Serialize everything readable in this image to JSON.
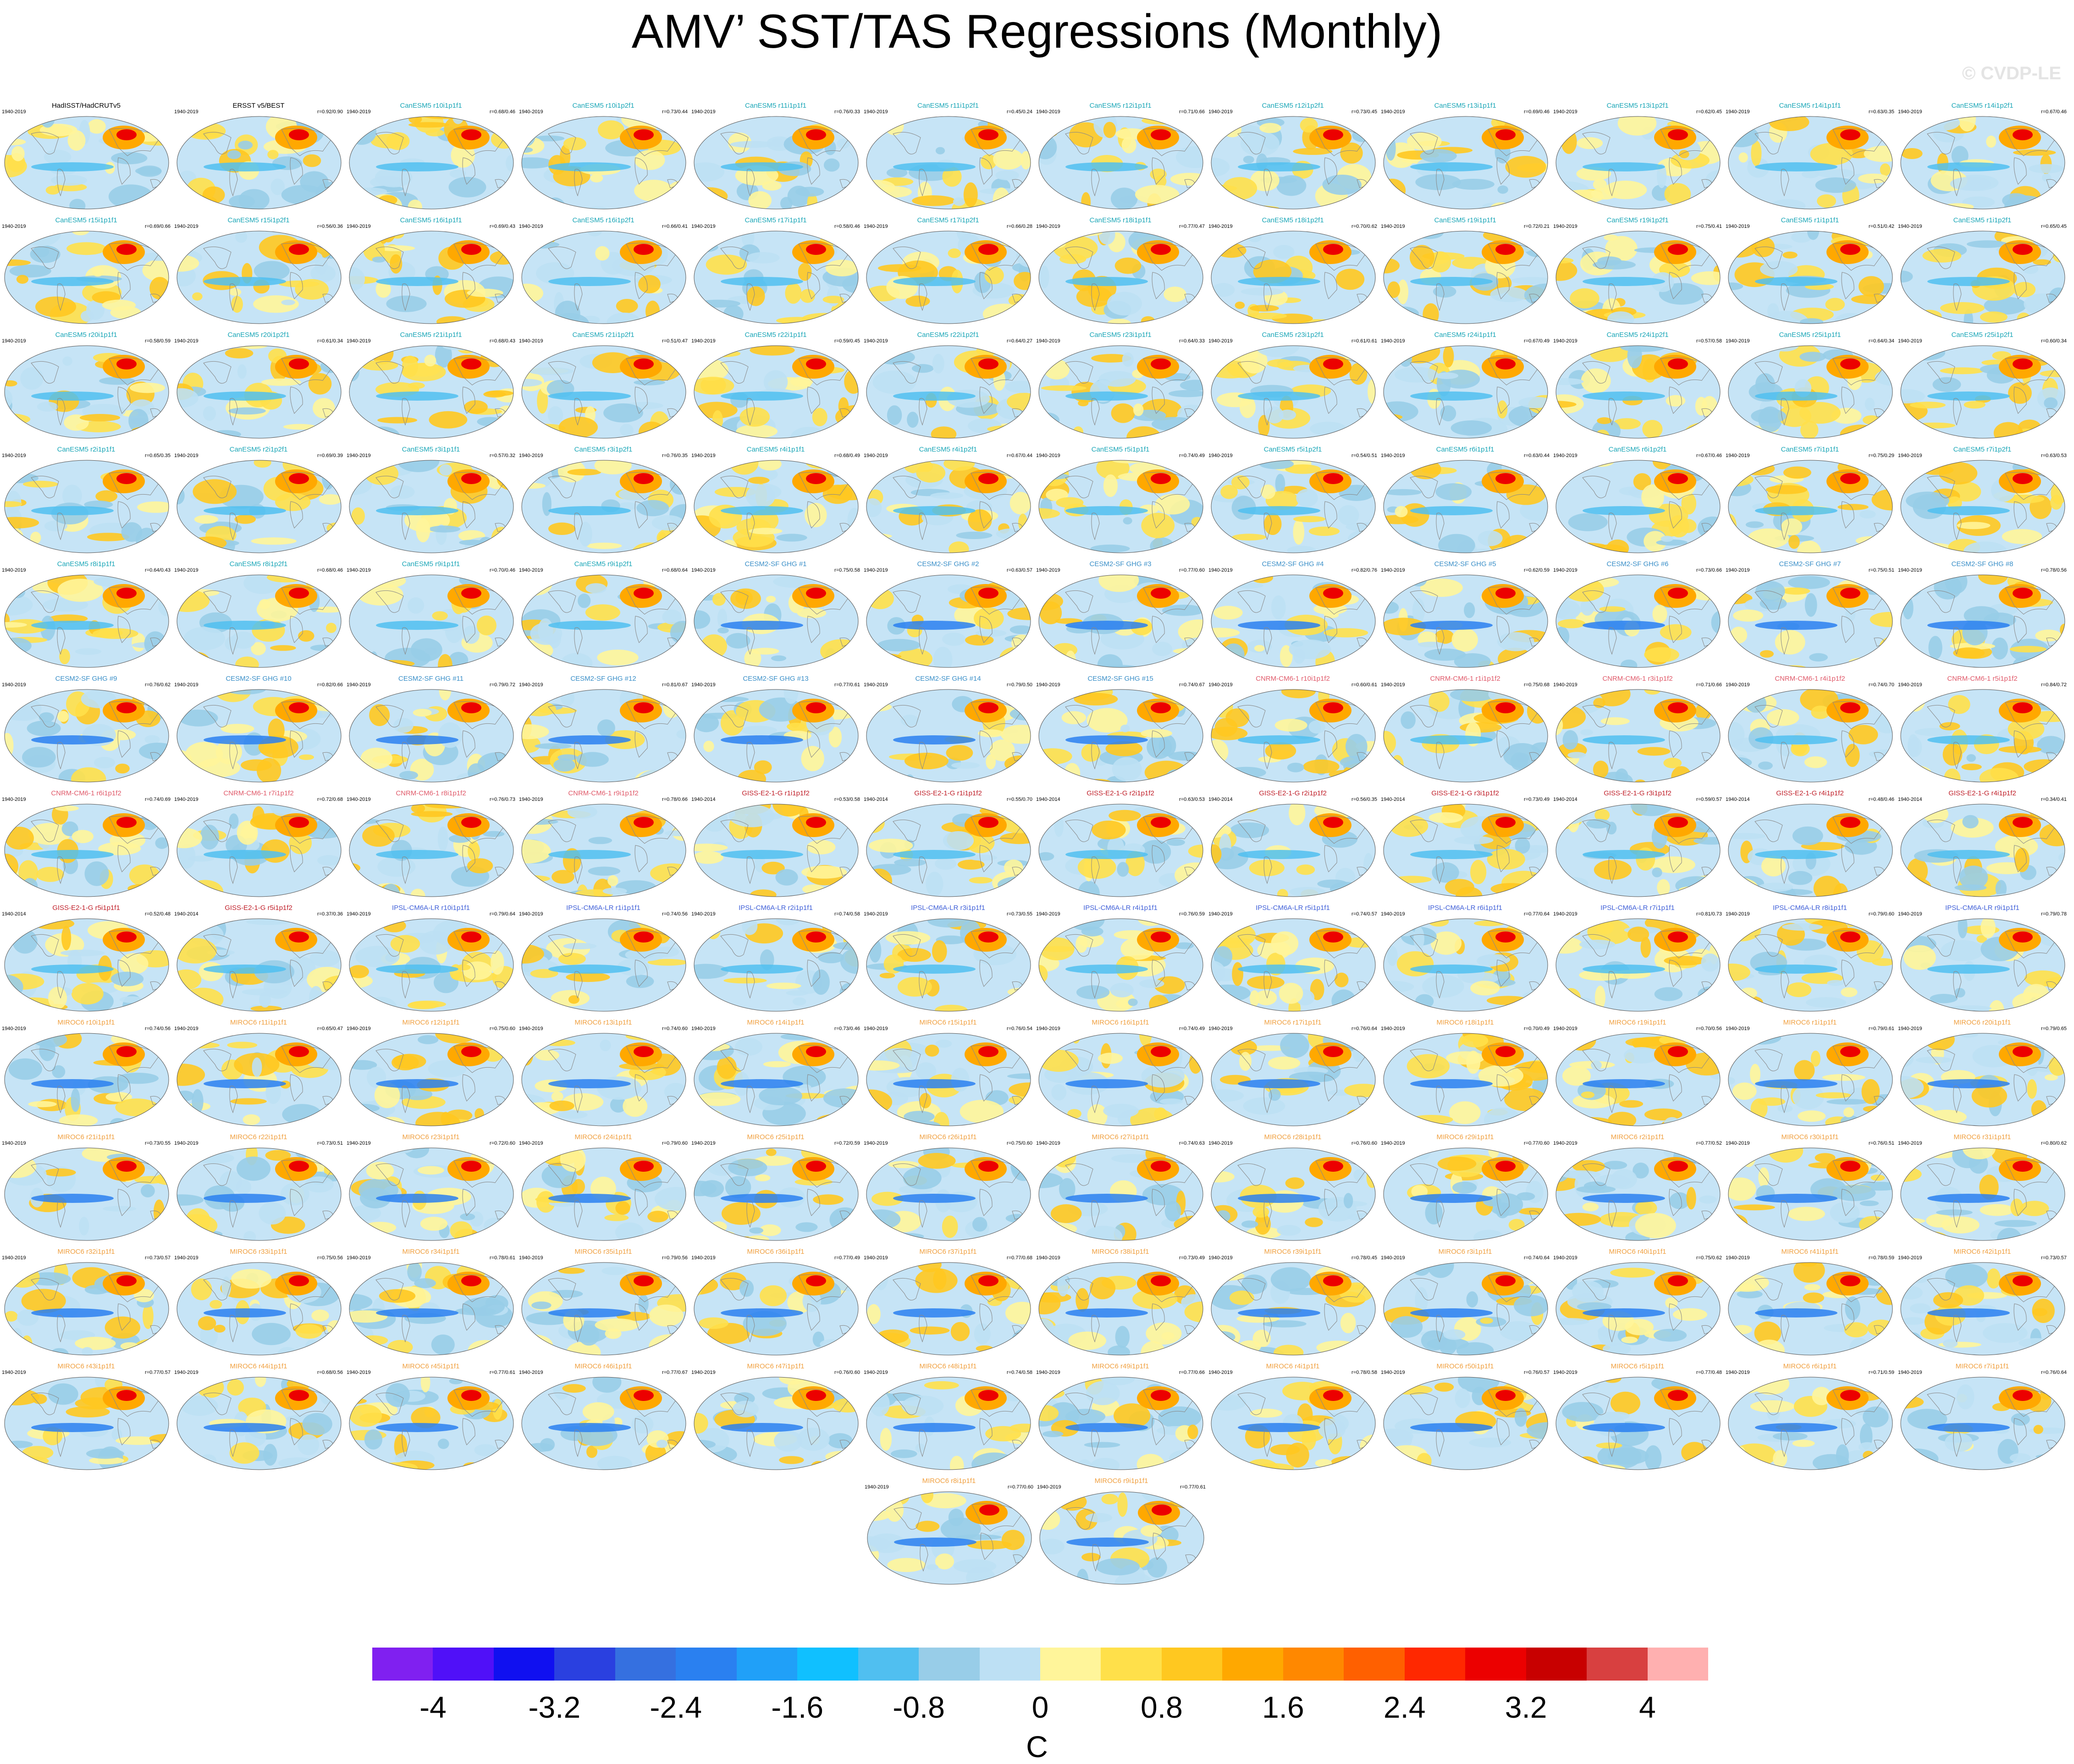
{
  "title": "AMV’ SST/TAS Regressions (Monthly)",
  "copyright": "© CVDP-LE",
  "period_default": "1940-2019",
  "panels": [
    {
      "label": "HadISST/HadCRUTv5",
      "group": "obs",
      "stat": ""
    },
    {
      "label": "ERSST v5/BEST",
      "group": "obs",
      "stat": "r=0.92/0.90"
    },
    {
      "label": "CanESM5 r10i1p1f1",
      "group": "canesm5",
      "stat": "r=0.68/0.46"
    },
    {
      "label": "CanESM5 r10i1p2f1",
      "group": "canesm5",
      "stat": "r=0.73/0.44"
    },
    {
      "label": "CanESM5 r11i1p1f1",
      "group": "canesm5",
      "stat": "r=0.76/0.33"
    },
    {
      "label": "CanESM5 r11i1p2f1",
      "group": "canesm5",
      "stat": "r=0.45/0.24"
    },
    {
      "label": "CanESM5 r12i1p1f1",
      "group": "canesm5",
      "stat": "r=0.71/0.66"
    },
    {
      "label": "CanESM5 r12i1p2f1",
      "group": "canesm5",
      "stat": "r=0.73/0.45"
    },
    {
      "label": "CanESM5 r13i1p1f1",
      "group": "canesm5",
      "stat": "r=0.69/0.46"
    },
    {
      "label": "CanESM5 r13i1p2f1",
      "group": "canesm5",
      "stat": "r=0.62/0.45"
    },
    {
      "label": "CanESM5 r14i1p1f1",
      "group": "canesm5",
      "stat": "r=0.63/0.35"
    },
    {
      "label": "CanESM5 r14i1p2f1",
      "group": "canesm5",
      "stat": "r=0.67/0.46"
    },
    {
      "label": "CanESM5 r15i1p1f1",
      "group": "canesm5",
      "stat": "r=0.69/0.66"
    },
    {
      "label": "CanESM5 r15i1p2f1",
      "group": "canesm5",
      "stat": "r=0.56/0.36"
    },
    {
      "label": "CanESM5 r16i1p1f1",
      "group": "canesm5",
      "stat": "r=0.69/0.43"
    },
    {
      "label": "CanESM5 r16i1p2f1",
      "group": "canesm5",
      "stat": "r=0.66/0.41"
    },
    {
      "label": "CanESM5 r17i1p1f1",
      "group": "canesm5",
      "stat": "r=0.58/0.46"
    },
    {
      "label": "CanESM5 r17i1p2f1",
      "group": "canesm5",
      "stat": "r=0.66/0.28"
    },
    {
      "label": "CanESM5 r18i1p1f1",
      "group": "canesm5",
      "stat": "r=0.77/0.47"
    },
    {
      "label": "CanESM5 r18i1p2f1",
      "group": "canesm5",
      "stat": "r=0.70/0.62"
    },
    {
      "label": "CanESM5 r19i1p1f1",
      "group": "canesm5",
      "stat": "r=0.72/0.21"
    },
    {
      "label": "CanESM5 r19i1p2f1",
      "group": "canesm5",
      "stat": "r=0.75/0.41"
    },
    {
      "label": "CanESM5 r1i1p1f1",
      "group": "canesm5",
      "stat": "r=0.51/0.42"
    },
    {
      "label": "CanESM5 r1i1p2f1",
      "group": "canesm5",
      "stat": "r=0.65/0.45"
    },
    {
      "label": "CanESM5 r20i1p1f1",
      "group": "canesm5",
      "stat": "r=0.58/0.59"
    },
    {
      "label": "CanESM5 r20i1p2f1",
      "group": "canesm5",
      "stat": "r=0.61/0.34"
    },
    {
      "label": "CanESM5 r21i1p1f1",
      "group": "canesm5",
      "stat": "r=0.68/0.43"
    },
    {
      "label": "CanESM5 r21i1p2f1",
      "group": "canesm5",
      "stat": "r=0.51/0.47"
    },
    {
      "label": "CanESM5 r22i1p1f1",
      "group": "canesm5",
      "stat": "r=0.59/0.45"
    },
    {
      "label": "CanESM5 r22i1p2f1",
      "group": "canesm5",
      "stat": "r=0.64/0.27"
    },
    {
      "label": "CanESM5 r23i1p1f1",
      "group": "canesm5",
      "stat": "r=0.64/0.33"
    },
    {
      "label": "CanESM5 r23i1p2f1",
      "group": "canesm5",
      "stat": "r=0.61/0.61"
    },
    {
      "label": "CanESM5 r24i1p1f1",
      "group": "canesm5",
      "stat": "r=0.67/0.49"
    },
    {
      "label": "CanESM5 r24i1p2f1",
      "group": "canesm5",
      "stat": "r=0.57/0.58"
    },
    {
      "label": "CanESM5 r25i1p1f1",
      "group": "canesm5",
      "stat": "r=0.64/0.34"
    },
    {
      "label": "CanESM5 r25i1p2f1",
      "group": "canesm5",
      "stat": "r=0.60/0.34"
    },
    {
      "label": "CanESM5 r2i1p1f1",
      "group": "canesm5",
      "stat": "r=0.65/0.35"
    },
    {
      "label": "CanESM5 r2i1p2f1",
      "group": "canesm5",
      "stat": "r=0.69/0.39"
    },
    {
      "label": "CanESM5 r3i1p1f1",
      "group": "canesm5",
      "stat": "r=0.57/0.32"
    },
    {
      "label": "CanESM5 r3i1p2f1",
      "group": "canesm5",
      "stat": "r=0.76/0.35"
    },
    {
      "label": "CanESM5 r4i1p1f1",
      "group": "canesm5",
      "stat": "r=0.68/0.49"
    },
    {
      "label": "CanESM5 r4i1p2f1",
      "group": "canesm5",
      "stat": "r=0.67/0.44"
    },
    {
      "label": "CanESM5 r5i1p1f1",
      "group": "canesm5",
      "stat": "r=0.74/0.49"
    },
    {
      "label": "CanESM5 r5i1p2f1",
      "group": "canesm5",
      "stat": "r=0.54/0.51"
    },
    {
      "label": "CanESM5 r6i1p1f1",
      "group": "canesm5",
      "stat": "r=0.63/0.44"
    },
    {
      "label": "CanESM5 r6i1p2f1",
      "group": "canesm5",
      "stat": "r=0.67/0.46"
    },
    {
      "label": "CanESM5 r7i1p1f1",
      "group": "canesm5",
      "stat": "r=0.75/0.29"
    },
    {
      "label": "CanESM5 r7i1p2f1",
      "group": "canesm5",
      "stat": "r=0.63/0.53"
    },
    {
      "label": "CanESM5 r8i1p1f1",
      "group": "canesm5",
      "stat": "r=0.64/0.43"
    },
    {
      "label": "CanESM5 r8i1p2f1",
      "group": "canesm5",
      "stat": "r=0.68/0.46"
    },
    {
      "label": "CanESM5 r9i1p1f1",
      "group": "canesm5",
      "stat": "r=0.70/0.46"
    },
    {
      "label": "CanESM5 r9i1p2f1",
      "group": "canesm5",
      "stat": "r=0.68/0.64"
    },
    {
      "label": "CESM2-SF GHG #1",
      "group": "cesm2",
      "stat": "r=0.75/0.58"
    },
    {
      "label": "CESM2-SF GHG #2",
      "group": "cesm2",
      "stat": "r=0.63/0.57"
    },
    {
      "label": "CESM2-SF GHG #3",
      "group": "cesm2",
      "stat": "r=0.77/0.60"
    },
    {
      "label": "CESM2-SF GHG #4",
      "group": "cesm2",
      "stat": "r=0.82/0.76"
    },
    {
      "label": "CESM2-SF GHG #5",
      "group": "cesm2",
      "stat": "r=0.62/0.59"
    },
    {
      "label": "CESM2-SF GHG #6",
      "group": "cesm2",
      "stat": "r=0.73/0.66"
    },
    {
      "label": "CESM2-SF GHG #7",
      "group": "cesm2",
      "stat": "r=0.75/0.51"
    },
    {
      "label": "CESM2-SF GHG #8",
      "group": "cesm2",
      "stat": "r=0.78/0.56"
    },
    {
      "label": "CESM2-SF GHG #9",
      "group": "cesm2",
      "stat": "r=0.76/0.62"
    },
    {
      "label": "CESM2-SF GHG #10",
      "group": "cesm2",
      "stat": "r=0.82/0.66"
    },
    {
      "label": "CESM2-SF GHG #11",
      "group": "cesm2",
      "stat": "r=0.79/0.72"
    },
    {
      "label": "CESM2-SF GHG #12",
      "group": "cesm2",
      "stat": "r=0.81/0.67"
    },
    {
      "label": "CESM2-SF GHG #13",
      "group": "cesm2",
      "stat": "r=0.77/0.61"
    },
    {
      "label": "CESM2-SF GHG #14",
      "group": "cesm2",
      "stat": "r=0.79/0.50"
    },
    {
      "label": "CESM2-SF GHG #15",
      "group": "cesm2",
      "stat": "r=0.74/0.67"
    },
    {
      "label": "CNRM-CM6-1 r10i1p1f2",
      "group": "cnrm",
      "stat": "r=0.60/0.61"
    },
    {
      "label": "CNRM-CM6-1 r1i1p1f2",
      "group": "cnrm",
      "stat": "r=0.75/0.68"
    },
    {
      "label": "CNRM-CM6-1 r3i1p1f2",
      "group": "cnrm",
      "stat": "r=0.71/0.66"
    },
    {
      "label": "CNRM-CM6-1 r4i1p1f2",
      "group": "cnrm",
      "stat": "r=0.74/0.70"
    },
    {
      "label": "CNRM-CM6-1 r5i1p1f2",
      "group": "cnrm",
      "stat": "r=0.84/0.72"
    },
    {
      "label": "CNRM-CM6-1 r6i1p1f2",
      "group": "cnrm",
      "stat": "r=0.74/0.69"
    },
    {
      "label": "CNRM-CM6-1 r7i1p1f2",
      "group": "cnrm",
      "stat": "r=0.72/0.68"
    },
    {
      "label": "CNRM-CM6-1 r8i1p1f2",
      "group": "cnrm",
      "stat": "r=0.76/0.73"
    },
    {
      "label": "CNRM-CM6-1 r9i1p1f2",
      "group": "cnrm",
      "stat": "r=0.78/0.66"
    },
    {
      "label": "GISS-E2-1-G r1i1p1f2",
      "group": "giss",
      "stat": "r=0.53/0.58",
      "years": "1940-2014"
    },
    {
      "label": "GISS-E2-1-G r1i1p1f2",
      "group": "giss",
      "stat": "r=0.55/0.70",
      "years": "1940-2014"
    },
    {
      "label": "GISS-E2-1-G r2i1p1f2",
      "group": "giss",
      "stat": "r=0.63/0.53",
      "years": "1940-2014"
    },
    {
      "label": "GISS-E2-1-G r2i1p1f2",
      "group": "giss",
      "stat": "r=0.56/0.35",
      "years": "1940-2014"
    },
    {
      "label": "GISS-E2-1-G r3i1p1f2",
      "group": "giss",
      "stat": "r=0.73/0.49",
      "years": "1940-2014"
    },
    {
      "label": "GISS-E2-1-G r3i1p1f2",
      "group": "giss",
      "stat": "r=0.59/0.57",
      "years": "1940-2014"
    },
    {
      "label": "GISS-E2-1-G r4i1p1f2",
      "group": "giss",
      "stat": "r=0.48/0.46",
      "years": "1940-2014"
    },
    {
      "label": "GISS-E2-1-G r4i1p1f2",
      "group": "giss",
      "stat": "r=0.34/0.41",
      "years": "1940-2014"
    },
    {
      "label": "GISS-E2-1-G r5i1p1f1",
      "group": "giss",
      "stat": "r=0.52/0.48",
      "years": "1940-2014"
    },
    {
      "label": "GISS-E2-1-G r5i1p1f2",
      "group": "giss",
      "stat": "r=0.37/0.36",
      "years": "1940-2014"
    },
    {
      "label": "IPSL-CM6A-LR r10i1p1f1",
      "group": "ipsl",
      "stat": "r=0.79/0.64"
    },
    {
      "label": "IPSL-CM6A-LR r1i1p1f1",
      "group": "ipsl",
      "stat": "r=0.74/0.56"
    },
    {
      "label": "IPSL-CM6A-LR r2i1p1f1",
      "group": "ipsl",
      "stat": "r=0.74/0.58"
    },
    {
      "label": "IPSL-CM6A-LR r3i1p1f1",
      "group": "ipsl",
      "stat": "r=0.73/0.55"
    },
    {
      "label": "IPSL-CM6A-LR r4i1p1f1",
      "group": "ipsl",
      "stat": "r=0.76/0.59"
    },
    {
      "label": "IPSL-CM6A-LR r5i1p1f1",
      "group": "ipsl",
      "stat": "r=0.74/0.57"
    },
    {
      "label": "IPSL-CM6A-LR r6i1p1f1",
      "group": "ipsl",
      "stat": "r=0.77/0.64"
    },
    {
      "label": "IPSL-CM6A-LR r7i1p1f1",
      "group": "ipsl",
      "stat": "r=0.81/0.73"
    },
    {
      "label": "IPSL-CM6A-LR r8i1p1f1",
      "group": "ipsl",
      "stat": "r=0.79/0.60"
    },
    {
      "label": "IPSL-CM6A-LR r9i1p1f1",
      "group": "ipsl",
      "stat": "r=0.79/0.78"
    },
    {
      "label": "MIROC6 r10i1p1f1",
      "group": "miroc6",
      "stat": "r=0.74/0.56"
    },
    {
      "label": "MIROC6 r11i1p1f1",
      "group": "miroc6",
      "stat": "r=0.65/0.47"
    },
    {
      "label": "MIROC6 r12i1p1f1",
      "group": "miroc6",
      "stat": "r=0.75/0.60"
    },
    {
      "label": "MIROC6 r13i1p1f1",
      "group": "miroc6",
      "stat": "r=0.74/0.60"
    },
    {
      "label": "MIROC6 r14i1p1f1",
      "group": "miroc6",
      "stat": "r=0.73/0.46"
    },
    {
      "label": "MIROC6 r15i1p1f1",
      "group": "miroc6",
      "stat": "r=0.76/0.54"
    },
    {
      "label": "MIROC6 r16i1p1f1",
      "group": "miroc6",
      "stat": "r=0.74/0.49"
    },
    {
      "label": "MIROC6 r17i1p1f1",
      "group": "miroc6",
      "stat": "r=0.76/0.64"
    },
    {
      "label": "MIROC6 r18i1p1f1",
      "group": "miroc6",
      "stat": "r=0.70/0.49"
    },
    {
      "label": "MIROC6 r19i1p1f1",
      "group": "miroc6",
      "stat": "r=0.70/0.56"
    },
    {
      "label": "MIROC6 r1i1p1f1",
      "group": "miroc6",
      "stat": "r=0.79/0.61"
    },
    {
      "label": "MIROC6 r20i1p1f1",
      "group": "miroc6",
      "stat": "r=0.79/0.65"
    },
    {
      "label": "MIROC6 r21i1p1f1",
      "group": "miroc6",
      "stat": "r=0.73/0.55"
    },
    {
      "label": "MIROC6 r22i1p1f1",
      "group": "miroc6",
      "stat": "r=0.73/0.51"
    },
    {
      "label": "MIROC6 r23i1p1f1",
      "group": "miroc6",
      "stat": "r=0.72/0.60"
    },
    {
      "label": "MIROC6 r24i1p1f1",
      "group": "miroc6",
      "stat": "r=0.79/0.60"
    },
    {
      "label": "MIROC6 r25i1p1f1",
      "group": "miroc6",
      "stat": "r=0.72/0.59"
    },
    {
      "label": "MIROC6 r26i1p1f1",
      "group": "miroc6",
      "stat": "r=0.75/0.60"
    },
    {
      "label": "MIROC6 r27i1p1f1",
      "group": "miroc6",
      "stat": "r=0.74/0.63"
    },
    {
      "label": "MIROC6 r28i1p1f1",
      "group": "miroc6",
      "stat": "r=0.76/0.60"
    },
    {
      "label": "MIROC6 r29i1p1f1",
      "group": "miroc6",
      "stat": "r=0.77/0.60"
    },
    {
      "label": "MIROC6 r2i1p1f1",
      "group": "miroc6",
      "stat": "r=0.77/0.52"
    },
    {
      "label": "MIROC6 r30i1p1f1",
      "group": "miroc6",
      "stat": "r=0.76/0.51"
    },
    {
      "label": "MIROC6 r31i1p1f1",
      "group": "miroc6",
      "stat": "r=0.80/0.62"
    },
    {
      "label": "MIROC6 r32i1p1f1",
      "group": "miroc6",
      "stat": "r=0.73/0.57"
    },
    {
      "label": "MIROC6 r33i1p1f1",
      "group": "miroc6",
      "stat": "r=0.75/0.56"
    },
    {
      "label": "MIROC6 r34i1p1f1",
      "group": "miroc6",
      "stat": "r=0.78/0.61"
    },
    {
      "label": "MIROC6 r35i1p1f1",
      "group": "miroc6",
      "stat": "r=0.79/0.56"
    },
    {
      "label": "MIROC6 r36i1p1f1",
      "group": "miroc6",
      "stat": "r=0.77/0.49"
    },
    {
      "label": "MIROC6 r37i1p1f1",
      "group": "miroc6",
      "stat": "r=0.77/0.68"
    },
    {
      "label": "MIROC6 r38i1p1f1",
      "group": "miroc6",
      "stat": "r=0.73/0.49"
    },
    {
      "label": "MIROC6 r39i1p1f1",
      "group": "miroc6",
      "stat": "r=0.78/0.45"
    },
    {
      "label": "MIROC6 r3i1p1f1",
      "group": "miroc6",
      "stat": "r=0.74/0.64"
    },
    {
      "label": "MIROC6 r40i1p1f1",
      "group": "miroc6",
      "stat": "r=0.75/0.62"
    },
    {
      "label": "MIROC6 r41i1p1f1",
      "group": "miroc6",
      "stat": "r=0.78/0.59"
    },
    {
      "label": "MIROC6 r42i1p1f1",
      "group": "miroc6",
      "stat": "r=0.73/0.57"
    },
    {
      "label": "MIROC6 r43i1p1f1",
      "group": "miroc6",
      "stat": "r=0.77/0.57"
    },
    {
      "label": "MIROC6 r44i1p1f1",
      "group": "miroc6",
      "stat": "r=0.68/0.56"
    },
    {
      "label": "MIROC6 r45i1p1f1",
      "group": "miroc6",
      "stat": "r=0.77/0.61"
    },
    {
      "label": "MIROC6 r46i1p1f1",
      "group": "miroc6",
      "stat": "r=0.77/0.67"
    },
    {
      "label": "MIROC6 r47i1p1f1",
      "group": "miroc6",
      "stat": "r=0.76/0.60"
    },
    {
      "label": "MIROC6 r48i1p1f1",
      "group": "miroc6",
      "stat": "r=0.74/0.58"
    },
    {
      "label": "MIROC6 r49i1p1f1",
      "group": "miroc6",
      "stat": "r=0.77/0.66"
    },
    {
      "label": "MIROC6 r4i1p1f1",
      "group": "miroc6",
      "stat": "r=0.78/0.58"
    },
    {
      "label": "MIROC6 r50i1p1f1",
      "group": "miroc6",
      "stat": "r=0.76/0.57"
    },
    {
      "label": "MIROC6 r5i1p1f1",
      "group": "miroc6",
      "stat": "r=0.77/0.48"
    },
    {
      "label": "MIROC6 r6i1p1f1",
      "group": "miroc6",
      "stat": "r=0.71/0.59"
    },
    {
      "label": "MIROC6 r7i1p1f1",
      "group": "miroc6",
      "stat": "r=0.76/0.64"
    },
    {
      "label": "MIROC6 r8i1p1f1",
      "group": "miroc6",
      "stat": "r=0.77/0.60"
    },
    {
      "label": "MIROC6 r9i1p1f1",
      "group": "miroc6",
      "stat": "r=0.77/0.61"
    }
  ],
  "group_colors": {
    "obs": "#000000",
    "canesm5": "#1aa6b7",
    "cesm2": "#3a8fc8",
    "cnrm": "#e05a6a",
    "giss": "#c0202a",
    "ipsl": "#4060d8",
    "miroc6": "#f0a040"
  },
  "colorbar": {
    "colors": [
      "#8020f0",
      "#5010f8",
      "#1010f0",
      "#2a40e0",
      "#3570e0",
      "#2a80f0",
      "#20a0f8",
      "#10c0ff",
      "#50bff0",
      "#98cde8",
      "#bde0f4",
      "#fff59a",
      "#ffe04a",
      "#ffc820",
      "#ffa800",
      "#ff8800",
      "#ff6000",
      "#ff2800",
      "#ec0000",
      "#c80000",
      "#d84040",
      "#ffb0b0"
    ],
    "tick_labels": [
      "-4",
      "-3.2",
      "-2.4",
      "-1.6",
      "-0.8",
      "0",
      "0.8",
      "1.6",
      "2.4",
      "3.2",
      "4"
    ],
    "units": "C"
  }
}
